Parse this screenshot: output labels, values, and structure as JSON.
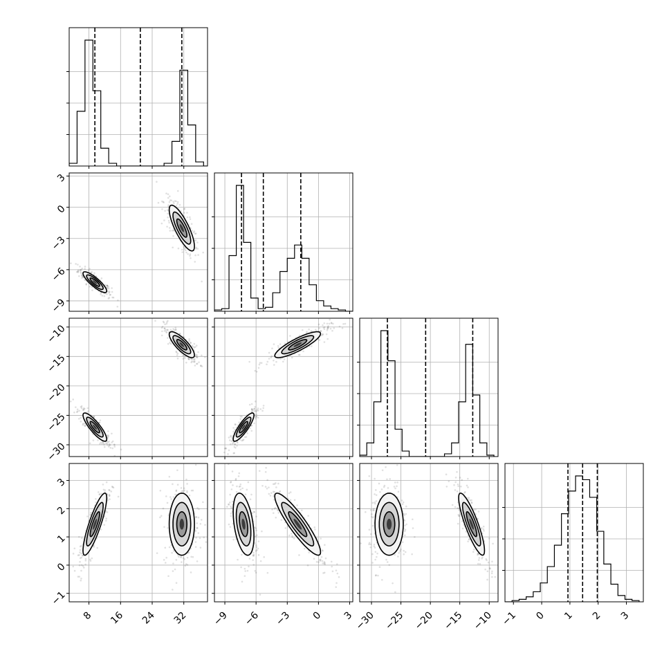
{
  "chart_data": {
    "type": "corner",
    "grid": true,
    "parameters": [
      {
        "range": [
          3,
          38
        ],
        "ticks": [
          8,
          16,
          24,
          32
        ],
        "tick_labels": [
          "8",
          "16",
          "24",
          "32"
        ],
        "quantiles": [
          9.5,
          21.0,
          31.5
        ],
        "hist_edges": [
          3,
          5,
          7,
          9,
          11,
          13,
          15,
          17,
          19,
          21,
          23,
          25,
          27,
          29,
          31,
          33,
          35,
          37,
          39
        ],
        "hist_counts": [
          2,
          40,
          92,
          55,
          13,
          2,
          0,
          0,
          0,
          0,
          0,
          0,
          2,
          18,
          70,
          30,
          3,
          0
        ],
        "modes": [
          [
            9.5,
            1.5,
            0.25
          ],
          [
            31.5,
            1.6,
            0.25
          ]
        ]
      },
      {
        "range": [
          -10,
          3.3
        ],
        "ticks": [
          -9,
          -6,
          -3,
          0,
          3
        ],
        "tick_labels": [
          "−9",
          "−6",
          "−3",
          "0",
          "3"
        ],
        "quantiles": [
          -7.4,
          -5.3,
          -1.7
        ],
        "hist_edges": [
          -10,
          -9.3,
          -8.6,
          -7.9,
          -7.2,
          -6.5,
          -5.8,
          -5.1,
          -4.4,
          -3.7,
          -3.0,
          -2.3,
          -1.6,
          -0.9,
          -0.2,
          0.5,
          1.2,
          1.9,
          2.6,
          3.3
        ],
        "hist_counts": [
          1,
          2,
          42,
          95,
          52,
          10,
          2,
          3,
          14,
          30,
          40,
          50,
          40,
          20,
          8,
          4,
          2,
          1,
          0
        ],
        "modes": [
          [
            -7.2,
            0.5,
            0.5
          ],
          [
            -2.0,
            1.1,
            0.5
          ]
        ]
      },
      {
        "range": [
          -32,
          -8.5
        ],
        "ticks": [
          -30,
          -25,
          -20,
          -15,
          -10
        ],
        "tick_labels": [
          "−30",
          "−25",
          "−20",
          "−15",
          "−10"
        ],
        "quantiles": [
          -27.3,
          -20.8,
          -12.8
        ],
        "hist_edges": [
          -32,
          -30.8,
          -29.6,
          -28.4,
          -27.2,
          -26.0,
          -24.8,
          -23.6,
          -22.4,
          -21.2,
          -20.0,
          -18.8,
          -17.6,
          -16.4,
          -15.2,
          -14.0,
          -12.8,
          -11.6,
          -10.4,
          -9.2
        ],
        "hist_counts": [
          1,
          10,
          40,
          92,
          70,
          20,
          4,
          0,
          0,
          0,
          0,
          0,
          2,
          10,
          40,
          82,
          45,
          10,
          1
        ],
        "modes": [
          [
            -27.0,
            1.2,
            0.5
          ],
          [
            -13.0,
            1.1,
            0.5
          ]
        ]
      },
      {
        "range": [
          -1.3,
          3.6
        ],
        "ticks": [
          -1,
          0,
          1,
          2,
          3
        ],
        "tick_labels": [
          "−1",
          "0",
          "1",
          "2",
          "3"
        ],
        "quantiles": [
          0.93,
          1.45,
          1.97
        ],
        "hist_edges": [
          -1.3,
          -1.05,
          -0.8,
          -0.55,
          -0.3,
          -0.05,
          0.2,
          0.45,
          0.7,
          0.95,
          1.2,
          1.45,
          1.7,
          1.95,
          2.2,
          2.45,
          2.7,
          2.95,
          3.2,
          3.45
        ],
        "hist_counts": [
          0,
          1,
          2,
          4,
          8,
          15,
          28,
          45,
          70,
          88,
          100,
          97,
          83,
          56,
          30,
          14,
          5,
          2,
          1
        ],
        "modes": [
          [
            1.45,
            0.55,
            1
          ]
        ]
      }
    ],
    "pair_correlations": {
      "1-0": [
        -0.85,
        -0.8
      ],
      "2-0": [
        -0.85,
        -0.8
      ],
      "2-1": [
        0.85,
        0.85
      ],
      "3-0": [
        0.85,
        0.0
      ],
      "3-1": [
        -0.4,
        -0.9
      ],
      "3-2": [
        0.0,
        -0.85
      ]
    }
  }
}
